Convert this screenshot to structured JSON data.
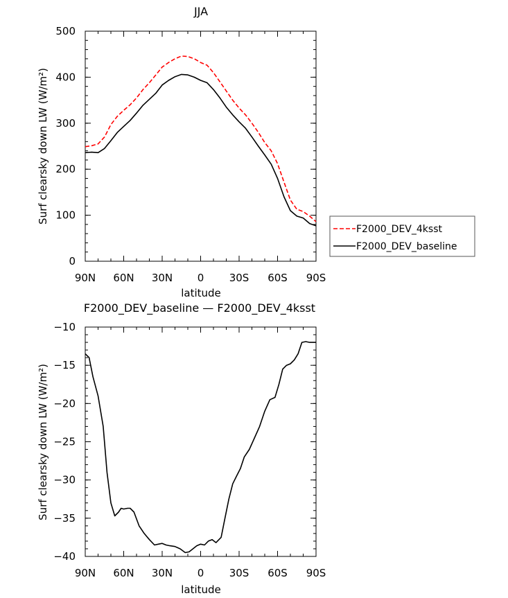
{
  "chart_data": [
    {
      "type": "line",
      "title": "JJA",
      "xlabel": "latitude",
      "ylabel": "Surf clearsky down LW (W/m²)",
      "xticks": [
        "90N",
        "60N",
        "30N",
        "0",
        "30S",
        "60S",
        "90S"
      ],
      "xtick_values": [
        -90,
        -60,
        -30,
        0,
        30,
        60,
        90
      ],
      "xlim": [
        -90,
        90
      ],
      "ylim": [
        0,
        500
      ],
      "yticks": [
        0,
        100,
        200,
        300,
        400,
        500
      ],
      "legend": "right, outside plot",
      "x": [
        -90,
        -85,
        -80,
        -75,
        -70,
        -65,
        -60,
        -55,
        -50,
        -45,
        -40,
        -35,
        -30,
        -25,
        -20,
        -15,
        -10,
        -5,
        0,
        5,
        10,
        15,
        20,
        25,
        30,
        35,
        40,
        45,
        50,
        55,
        60,
        65,
        70,
        75,
        80,
        85,
        90
      ],
      "series": [
        {
          "name": "F2000_DEV_4ksst",
          "color": "#ff0000",
          "style": "dashed",
          "values": [
            249,
            251,
            255,
            270,
            297,
            315,
            328,
            340,
            355,
            373,
            388,
            405,
            422,
            432,
            440,
            446,
            445,
            440,
            432,
            426,
            410,
            390,
            370,
            350,
            333,
            318,
            300,
            280,
            258,
            240,
            212,
            172,
            133,
            113,
            108,
            98,
            86
          ]
        },
        {
          "name": "F2000_DEV_baseline",
          "color": "#000000",
          "style": "solid",
          "values": [
            236,
            237,
            236,
            245,
            262,
            280,
            293,
            306,
            322,
            339,
            352,
            365,
            383,
            393,
            401,
            406,
            405,
            400,
            393,
            388,
            373,
            355,
            335,
            318,
            303,
            289,
            270,
            250,
            231,
            211,
            180,
            140,
            110,
            98,
            94,
            82,
            77
          ]
        }
      ]
    },
    {
      "type": "line",
      "title": "F2000_DEV_baseline — F2000_DEV_4ksst",
      "xlabel": "latitude",
      "ylabel": "Surf clearsky down LW (W/m²)",
      "xticks": [
        "90N",
        "60N",
        "30N",
        "0",
        "30S",
        "60S",
        "90S"
      ],
      "xtick_values": [
        -90,
        -60,
        -30,
        0,
        30,
        60,
        90
      ],
      "xlim": [
        -90,
        90
      ],
      "ylim": [
        -40,
        -10
      ],
      "yticks": [
        -10,
        -15,
        -20,
        -25,
        -30,
        -35,
        -40
      ],
      "x": [
        -90,
        -87,
        -84,
        -80,
        -76,
        -73,
        -70,
        -67,
        -64,
        -62,
        -60,
        -57,
        -55,
        -52,
        -48,
        -44,
        -40,
        -36,
        -33,
        -30,
        -27,
        -24,
        -20,
        -16,
        -12,
        -9,
        -6,
        -3,
        0,
        3,
        6,
        9,
        12,
        16,
        19,
        22,
        25,
        28,
        31,
        34,
        38,
        42,
        46,
        50,
        54,
        58,
        61,
        64,
        67,
        70,
        73,
        76,
        79,
        82,
        85,
        88,
        90
      ],
      "series": [
        {
          "name": "F2000_DEV_baseline - F2000_DEV_4ksst",
          "color": "#000000",
          "style": "solid",
          "values": [
            -13.5,
            -14.0,
            -16.5,
            -19.0,
            -23.0,
            -29.0,
            -33.0,
            -34.7,
            -34.2,
            -33.7,
            -33.8,
            -33.7,
            -33.7,
            -34.2,
            -36.0,
            -37.0,
            -37.8,
            -38.5,
            -38.4,
            -38.3,
            -38.5,
            -38.6,
            -38.7,
            -39.0,
            -39.5,
            -39.4,
            -39.0,
            -38.6,
            -38.4,
            -38.5,
            -38.0,
            -37.8,
            -38.2,
            -37.5,
            -35.0,
            -32.5,
            -30.5,
            -29.5,
            -28.5,
            -27.0,
            -26.0,
            -24.5,
            -23.0,
            -21.0,
            -19.5,
            -19.2,
            -17.5,
            -15.5,
            -15.0,
            -14.8,
            -14.3,
            -13.5,
            -12.0,
            -11.9,
            -12.0,
            -12.0,
            -12.0
          ]
        }
      ]
    }
  ]
}
